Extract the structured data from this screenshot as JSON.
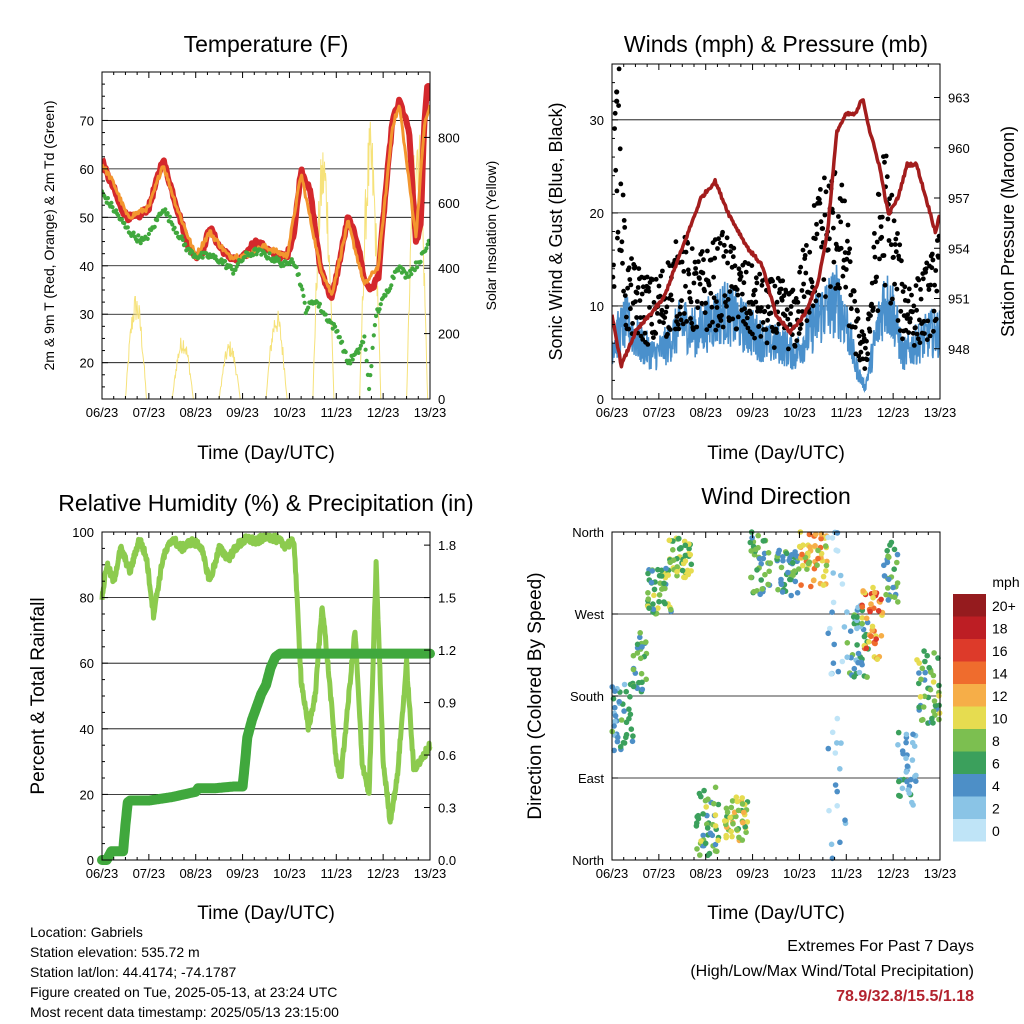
{
  "chart_data": [
    {
      "type": "line",
      "title": "Temperature (F)",
      "xlabel": "Time (Day/UTC)",
      "ylabel": "2m & 9m T (Red, Orange) & 2m Td (Green)",
      "y2label": "Solar Insolation (Yellow)",
      "xticks": [
        "06/23",
        "07/23",
        "08/23",
        "09/23",
        "10/23",
        "11/23",
        "12/23",
        "13/23"
      ],
      "ylim": [
        12.5,
        80
      ],
      "yticks": [
        20,
        30,
        40,
        50,
        60,
        70
      ],
      "y2lim": [
        0,
        1000
      ],
      "y2ticks": [
        0,
        200,
        400,
        600,
        800
      ],
      "series": [
        {
          "name": "2m T",
          "color": "#d4282c",
          "x": [
            0,
            0.1,
            0.25,
            0.4,
            0.55,
            0.75,
            1.0,
            1.3,
            1.6,
            1.85,
            2.0,
            2.15,
            2.3,
            2.5,
            2.7,
            2.9,
            3.05,
            3.25,
            3.45,
            3.7,
            3.95,
            4.1,
            4.25,
            4.45,
            4.65,
            4.9,
            5.05,
            5.25,
            5.45,
            5.6,
            5.75,
            5.9,
            6.05,
            6.2,
            6.35,
            6.55,
            6.7,
            6.8,
            6.88,
            6.95,
            7.0
          ],
          "y": [
            62,
            59,
            56,
            52,
            50,
            50,
            52,
            62,
            52,
            44,
            42,
            43,
            48,
            44,
            42,
            41,
            42,
            45,
            44,
            42,
            42,
            47,
            60,
            55,
            40,
            33,
            40,
            50,
            45,
            37,
            35,
            38,
            55,
            70,
            74,
            68,
            45,
            48,
            70,
            78,
            74
          ]
        },
        {
          "name": "9m T",
          "color": "#f3962e",
          "x": [
            0,
            0.25,
            0.55,
            1.0,
            1.3,
            1.6,
            2.0,
            2.3,
            2.7,
            3.05,
            3.45,
            3.95,
            4.25,
            4.65,
            4.9,
            5.25,
            5.6,
            5.9,
            6.2,
            6.35,
            6.7,
            6.88,
            7.0
          ],
          "y": [
            61,
            57,
            50,
            52,
            61,
            52,
            42,
            47,
            42,
            42,
            44,
            42,
            59,
            40,
            34,
            49,
            36,
            40,
            69,
            73,
            46,
            69,
            73
          ]
        },
        {
          "name": "2m Td",
          "color": "#40a83d",
          "x": [
            0,
            0.15,
            0.3,
            0.5,
            0.7,
            0.9,
            1.1,
            1.3,
            1.6,
            1.85,
            2.05,
            2.3,
            2.55,
            2.8,
            3.05,
            3.3,
            3.55,
            3.75,
            3.95,
            4.05,
            4.2,
            4.35,
            4.55,
            4.75,
            4.9,
            5.05,
            5.25,
            5.45,
            5.6,
            5.7,
            5.85,
            6.0,
            6.15,
            6.3,
            6.5,
            6.7,
            6.9,
            7.0
          ],
          "y": [
            55,
            53,
            51,
            48,
            46,
            45,
            48,
            52,
            47,
            43,
            42,
            42,
            41,
            39,
            42,
            43,
            42,
            41,
            40,
            42,
            38,
            31,
            33,
            30,
            28,
            26,
            20,
            22,
            25,
            15,
            30,
            33,
            36,
            40,
            38,
            40,
            43,
            46
          ]
        },
        {
          "name": "Solar Insolation",
          "color": "#f6e27a",
          "axis": "y2",
          "daily_peaks": [
            720,
            330,
            200,
            180,
            280,
            800,
            850,
            900,
            780
          ]
        }
      ]
    },
    {
      "type": "line",
      "title": "Winds (mph) & Pressure (mb)",
      "xlabel": "Time (Day/UTC)",
      "ylabel": "Sonic Wind & Gust (Blue, Black)",
      "y2label": "Station Pressure (Maroon)",
      "xticks": [
        "06/23",
        "07/23",
        "08/23",
        "09/23",
        "10/23",
        "11/23",
        "12/23",
        "13/23"
      ],
      "ylim": [
        0,
        36
      ],
      "yticks": [
        0,
        10,
        20,
        30
      ],
      "y2lim": [
        945,
        965
      ],
      "y2ticks": [
        948,
        951,
        954,
        957,
        960,
        963
      ],
      "series": [
        {
          "name": "Sonic Wind",
          "color": "#4a90cc",
          "x": [
            0,
            0.3,
            0.6,
            0.9,
            1.2,
            1.5,
            1.8,
            2.1,
            2.4,
            2.7,
            3.0,
            3.3,
            3.6,
            3.9,
            4.2,
            4.5,
            4.8,
            5.0,
            5.2,
            5.4,
            5.6,
            5.8,
            6.0,
            6.2,
            6.5,
            6.8,
            7.0
          ],
          "y": [
            5,
            7,
            5,
            4,
            5,
            7,
            6,
            7,
            8,
            7,
            6,
            5,
            5,
            4,
            6,
            8,
            9,
            7,
            3,
            1,
            5,
            9,
            8,
            4,
            5,
            6,
            6
          ]
        },
        {
          "name": "Gust",
          "color": "#000000",
          "x": [
            0,
            0.1,
            0.3,
            0.6,
            0.9,
            1.2,
            1.5,
            1.8,
            2.1,
            2.4,
            2.7,
            3.0,
            3.3,
            3.6,
            3.9,
            4.2,
            4.5,
            4.8,
            5.0,
            5.2,
            5.4,
            5.6,
            5.8,
            6.0,
            6.2,
            6.5,
            6.8,
            7.0
          ],
          "y": [
            10,
            33,
            12,
            11,
            10,
            12,
            14,
            12,
            13,
            14,
            12,
            11,
            10,
            10,
            9,
            15,
            19,
            20,
            16,
            8,
            5,
            14,
            22,
            17,
            11,
            10,
            12,
            14
          ]
        },
        {
          "name": "Station Pressure",
          "color": "#a31d1d",
          "axis": "y2",
          "x": [
            0,
            0.2,
            0.5,
            0.8,
            1.1,
            1.5,
            1.9,
            2.2,
            2.5,
            2.9,
            3.2,
            3.5,
            3.8,
            4.1,
            4.4,
            4.6,
            4.8,
            5.0,
            5.2,
            5.35,
            5.5,
            5.7,
            5.9,
            6.1,
            6.3,
            6.5,
            6.7,
            6.9,
            7.0
          ],
          "y": [
            950,
            947,
            949,
            950,
            951,
            954,
            957,
            958,
            956,
            954,
            953,
            950,
            949,
            950,
            952,
            955,
            961,
            962,
            962,
            963,
            961,
            959,
            956,
            957,
            959,
            959,
            957,
            955,
            956
          ]
        }
      ]
    },
    {
      "type": "line",
      "title": "Relative Humidity (%) & Precipitation (in)",
      "xlabel": "Time (Day/UTC)",
      "ylabel": "Percent & Total Rainfall",
      "xticks": [
        "06/23",
        "07/23",
        "08/23",
        "09/23",
        "10/23",
        "11/23",
        "12/23",
        "13/23"
      ],
      "ylim": [
        0,
        100
      ],
      "yticks": [
        0,
        20,
        40,
        60,
        80,
        100
      ],
      "y2lim": [
        0,
        1.875
      ],
      "y2ticks": [
        0.0,
        0.3,
        0.6,
        0.9,
        1.2,
        1.5,
        1.8
      ],
      "series": [
        {
          "name": "Relative Humidity",
          "color": "#8ccb4e",
          "x": [
            0,
            0.1,
            0.25,
            0.4,
            0.6,
            0.8,
            0.95,
            1.1,
            1.3,
            1.5,
            1.7,
            1.9,
            2.1,
            2.3,
            2.5,
            2.7,
            2.9,
            3.1,
            3.3,
            3.5,
            3.7,
            3.9,
            4.1,
            4.25,
            4.4,
            4.55,
            4.7,
            4.85,
            5.0,
            5.1,
            5.2,
            5.4,
            5.55,
            5.7,
            5.85,
            6.0,
            6.15,
            6.3,
            6.5,
            6.65,
            6.8,
            6.95,
            7.0
          ],
          "y": [
            80,
            90,
            85,
            95,
            88,
            98,
            92,
            75,
            92,
            98,
            95,
            97,
            96,
            85,
            95,
            92,
            96,
            98,
            97,
            99,
            98,
            96,
            97,
            55,
            40,
            50,
            78,
            55,
            30,
            25,
            40,
            70,
            30,
            20,
            90,
            30,
            12,
            25,
            60,
            28,
            30,
            34,
            35
          ]
        },
        {
          "name": "Total Rainfall",
          "color": "#40a83d",
          "axis": "y2",
          "x": [
            0,
            0.1,
            0.2,
            0.3,
            0.45,
            0.5,
            0.55,
            0.6,
            1.0,
            1.5,
            2.0,
            2.05,
            2.1,
            2.4,
            2.8,
            3.0,
            3.05,
            3.1,
            3.2,
            3.4,
            3.5,
            3.6,
            3.7,
            3.8,
            4.0,
            7.0
          ],
          "y": [
            0,
            0,
            0.05,
            0.05,
            0.05,
            0.2,
            0.33,
            0.34,
            0.34,
            0.36,
            0.39,
            0.41,
            0.41,
            0.41,
            0.42,
            0.42,
            0.55,
            0.7,
            0.8,
            0.95,
            1.0,
            1.1,
            1.16,
            1.18,
            1.18,
            1.18
          ]
        }
      ]
    },
    {
      "type": "scatter",
      "title": "Wind Direction",
      "xlabel": "Time (Day/UTC)",
      "ylabel": "Direction (Colored By Speed)",
      "xticks": [
        "06/23",
        "07/23",
        "08/23",
        "09/23",
        "10/23",
        "11/23",
        "12/23",
        "13/23"
      ],
      "ylim": [
        0,
        360
      ],
      "yticks": [
        "North",
        "East",
        "South",
        "West",
        "North"
      ],
      "colorbar": {
        "title": "mph",
        "labels": [
          "0",
          "2",
          "4",
          "6",
          "8",
          "10",
          "12",
          "14",
          "16",
          "18",
          "20+"
        ],
        "colors": [
          "#bfe4f7",
          "#8ac4e6",
          "#4d8fc7",
          "#3ba05c",
          "#7cbf50",
          "#e6dc50",
          "#f6ae48",
          "#ef6c2d",
          "#dd3a2a",
          "#bd1e24",
          "#951b1e"
        ]
      },
      "clusters": [
        {
          "t0": 0.0,
          "t1": 0.45,
          "dir0": 120,
          "dir1": 200,
          "speed": 5
        },
        {
          "t0": 0.45,
          "t1": 0.75,
          "dir0": 180,
          "dir1": 250,
          "speed": 6
        },
        {
          "t0": 0.75,
          "t1": 1.3,
          "dir0": 270,
          "dir1": 320,
          "speed": 7
        },
        {
          "t0": 1.2,
          "t1": 1.7,
          "dir0": 310,
          "dir1": 355,
          "speed": 8
        },
        {
          "t0": 1.8,
          "t1": 2.3,
          "dir0": 0,
          "dir1": 80,
          "speed": 7
        },
        {
          "t0": 2.4,
          "t1": 2.9,
          "dir0": 20,
          "dir1": 70,
          "speed": 9
        },
        {
          "t0": 2.95,
          "t1": 3.4,
          "dir0": 290,
          "dir1": 360,
          "speed": 6
        },
        {
          "t0": 3.5,
          "t1": 4.0,
          "dir0": 290,
          "dir1": 340,
          "speed": 6
        },
        {
          "t0": 4.0,
          "t1": 4.6,
          "dir0": 300,
          "dir1": 360,
          "speed": 11
        },
        {
          "t0": 4.6,
          "t1": 5.0,
          "dir0": 0,
          "dir1": 360,
          "speed": 2
        },
        {
          "t0": 5.0,
          "t1": 5.5,
          "dir0": 200,
          "dir1": 280,
          "speed": 5
        },
        {
          "t0": 5.3,
          "t1": 5.8,
          "dir0": 220,
          "dir1": 300,
          "speed": 13
        },
        {
          "t0": 5.8,
          "t1": 6.1,
          "dir0": 280,
          "dir1": 350,
          "speed": 6
        },
        {
          "t0": 6.1,
          "t1": 6.5,
          "dir0": 60,
          "dir1": 140,
          "speed": 4
        },
        {
          "t0": 6.5,
          "t1": 7.0,
          "dir0": 150,
          "dir1": 230,
          "speed": 7
        }
      ]
    }
  ],
  "info": {
    "location": "Location: Gabriels",
    "elevation": "Station elevation: 535.72 m",
    "latlon": "Station lat/lon: 44.4174; -74.1787",
    "created": "Figure created on Tue, 2025-05-13, at 23:24 UTC",
    "latest": "Most recent data timestamp: 2025/05/13 23:15:00"
  },
  "extremes": {
    "title": "Extremes For Past 7 Days",
    "subtitle": "(High/Low/Max Wind/Total Precipitation)",
    "values": "78.9/32.8/15.5/1.18"
  }
}
